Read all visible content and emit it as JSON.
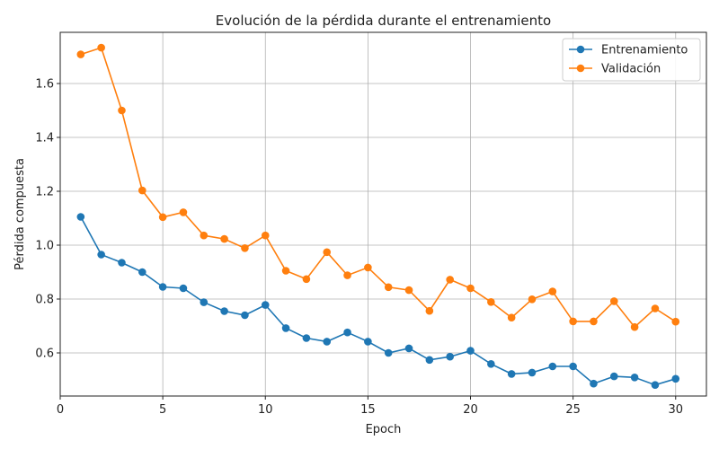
{
  "chart_data": {
    "type": "line",
    "title": "Evolución de la pérdida durante el entrenamiento",
    "xlabel": "Epoch",
    "ylabel": "Pérdida compuesta",
    "xlim": [
      0,
      31.5
    ],
    "ylim": [
      0.44,
      1.79
    ],
    "xticks": [
      0,
      5,
      10,
      15,
      20,
      25,
      30
    ],
    "yticks": [
      0.6,
      0.8,
      1.0,
      1.2,
      1.4,
      1.6
    ],
    "grid": true,
    "legend_position": "top-right",
    "x": [
      1,
      2,
      3,
      4,
      5,
      6,
      7,
      8,
      9,
      10,
      11,
      12,
      13,
      14,
      15,
      16,
      17,
      18,
      19,
      20,
      21,
      22,
      23,
      24,
      25,
      26,
      27,
      28,
      29,
      30
    ],
    "series": [
      {
        "name": "Entrenamiento",
        "color": "#1f77b4",
        "values": [
          1.105,
          0.965,
          0.935,
          0.9,
          0.845,
          0.84,
          0.788,
          0.755,
          0.74,
          0.778,
          0.692,
          0.655,
          0.642,
          0.676,
          0.642,
          0.6,
          0.617,
          0.574,
          0.586,
          0.608,
          0.559,
          0.522,
          0.527,
          0.55,
          0.55,
          0.486,
          0.513,
          0.509,
          0.481,
          0.504
        ]
      },
      {
        "name": "Validación",
        "color": "#ff7f0e",
        "values": [
          1.708,
          1.733,
          1.5,
          1.203,
          1.104,
          1.122,
          1.036,
          1.023,
          0.989,
          1.036,
          0.905,
          0.874,
          0.974,
          0.888,
          0.917,
          0.844,
          0.833,
          0.756,
          0.872,
          0.84,
          0.789,
          0.731,
          0.799,
          0.828,
          0.717,
          0.717,
          0.792,
          0.696,
          0.765,
          0.716
        ]
      }
    ]
  }
}
